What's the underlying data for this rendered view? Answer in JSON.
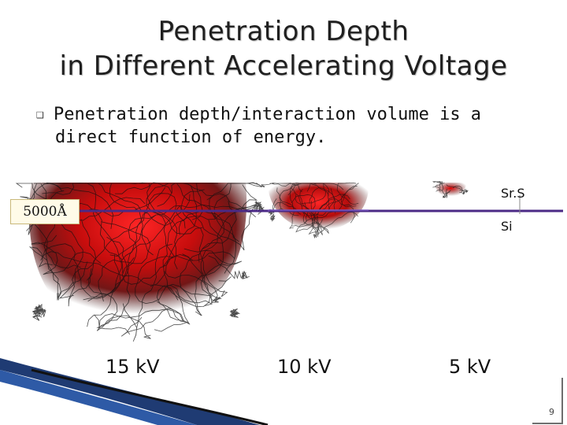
{
  "slide": {
    "title_line1": "Penetration Depth",
    "title_line2": "in Different Accelerating Voltage",
    "bullet_glyph": "❑",
    "bullet_line1": "Penetration depth/interaction volume is a",
    "bullet_line2": "direct function of energy.",
    "page_number": "9"
  },
  "figure": {
    "reference_depth_label": "5000Å",
    "layer_top_label": "Sr.S",
    "layer_bottom_label": "Si",
    "voltages": [
      "15 kV",
      "10 kV",
      "5 kV"
    ],
    "colors": {
      "interface_line": "#4b2a86",
      "interaction_red": "#e00000",
      "trajectory_dark": "#111111"
    }
  }
}
